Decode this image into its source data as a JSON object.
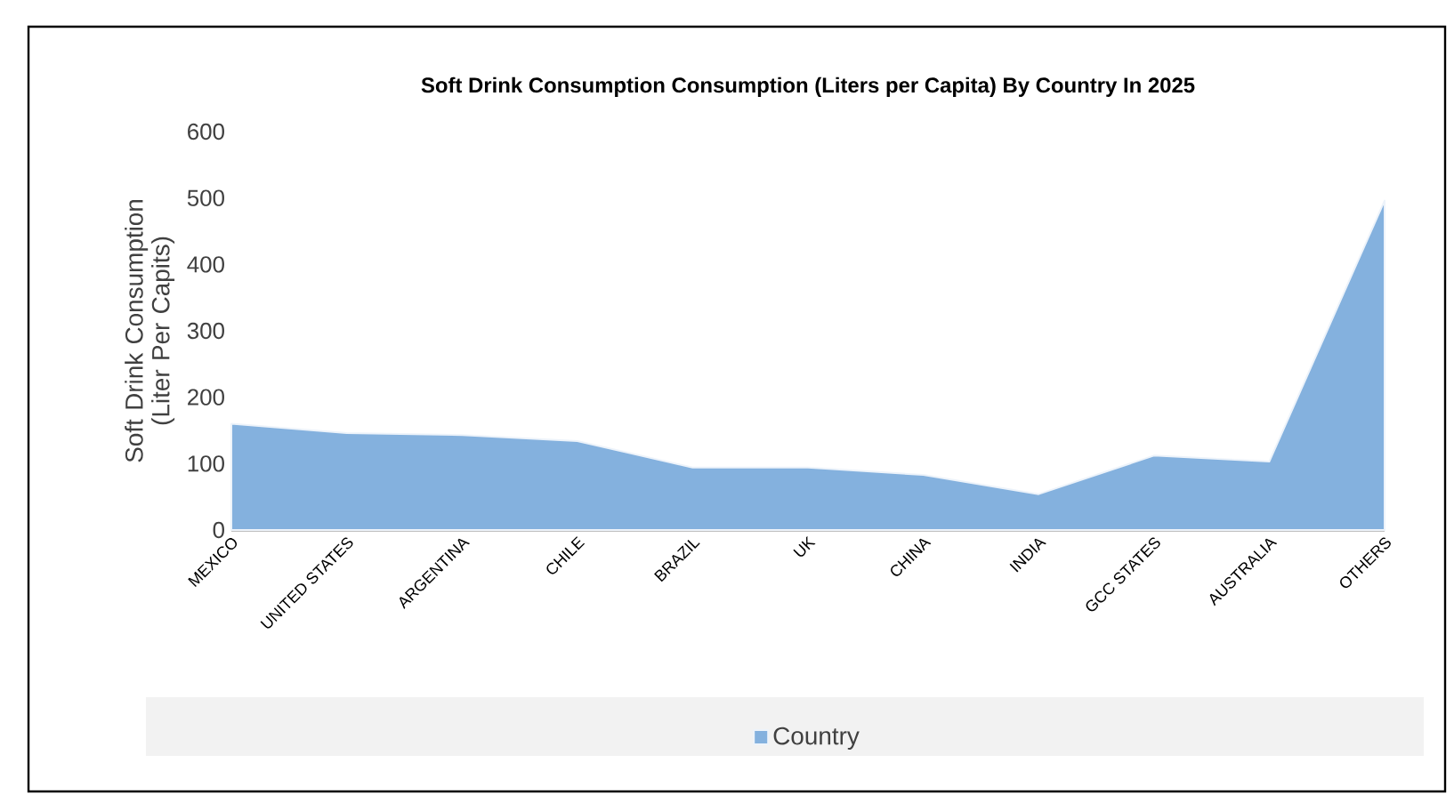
{
  "chart_data": {
    "type": "area",
    "title": "Soft Drink Consumption Consumption (Liters per Capita) By Country In 2025",
    "ylabel": "Soft Drink Consumption (Liter Per Capits)",
    "categories": [
      "MEXICO",
      "UNITED STATES",
      "ARGENTINA",
      "CHILE",
      "BRAZIL",
      "UK",
      "CHINA",
      "INDIA",
      "GCC STATES",
      "AUSTRALIA",
      "OTHERS"
    ],
    "series": [
      {
        "name": "Country",
        "color": "#84b1de",
        "values": [
          160,
          146,
          143,
          134,
          94,
          94,
          83,
          54,
          112,
          103,
          496
        ]
      }
    ],
    "ylim": [
      0,
      600
    ],
    "yticks": [
      0,
      100,
      200,
      300,
      400,
      500,
      600
    ],
    "grid": false,
    "legend": "bottom"
  }
}
